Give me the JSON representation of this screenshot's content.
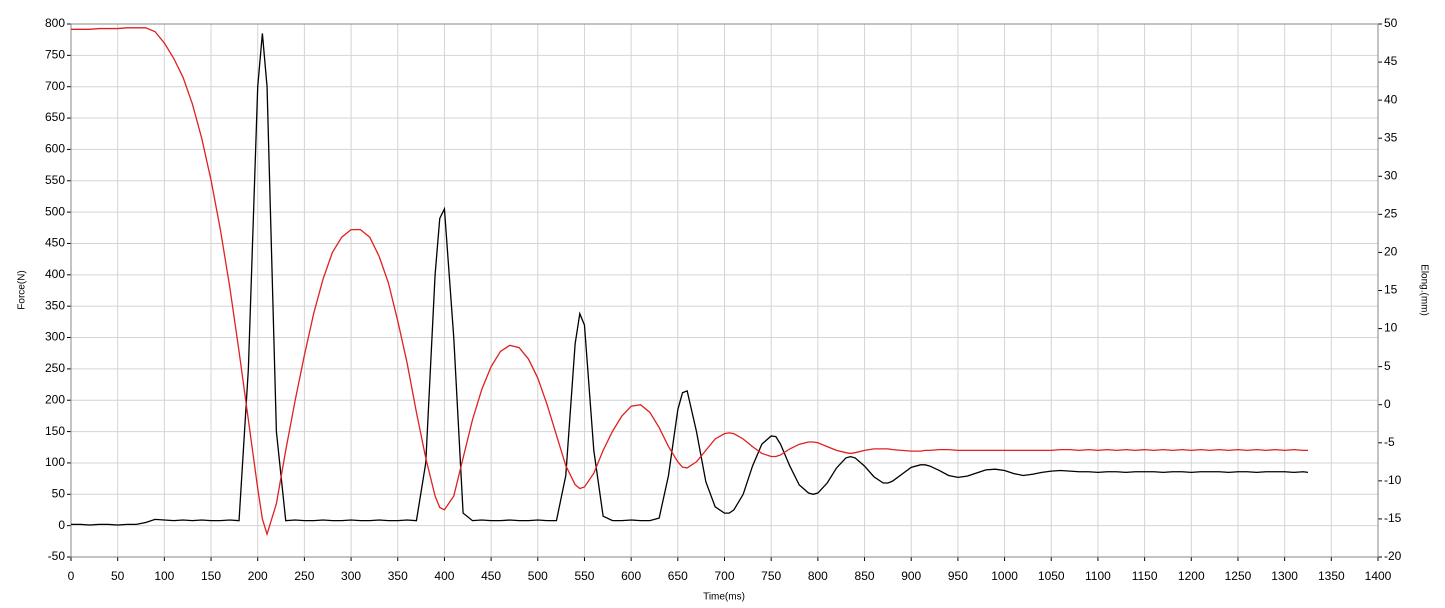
{
  "chart_data": {
    "type": "line",
    "x_label": "Time(ms)",
    "y_label": "Force(N)",
    "y2_label": "Elong.(mm)",
    "x": [
      0,
      10,
      20,
      30,
      40,
      50,
      60,
      70,
      80,
      90,
      100,
      110,
      120,
      130,
      140,
      150,
      160,
      170,
      180,
      190,
      200,
      205,
      210,
      220,
      230,
      240,
      250,
      260,
      270,
      280,
      290,
      300,
      310,
      320,
      330,
      340,
      350,
      360,
      370,
      380,
      390,
      395,
      400,
      410,
      420,
      430,
      440,
      450,
      460,
      470,
      480,
      490,
      500,
      510,
      520,
      530,
      540,
      545,
      550,
      560,
      570,
      580,
      590,
      600,
      610,
      620,
      630,
      640,
      650,
      655,
      660,
      670,
      680,
      690,
      700,
      705,
      710,
      720,
      730,
      740,
      750,
      755,
      760,
      770,
      780,
      790,
      795,
      800,
      810,
      820,
      830,
      835,
      840,
      850,
      860,
      870,
      875,
      880,
      890,
      900,
      910,
      915,
      920,
      930,
      940,
      950,
      960,
      970,
      980,
      990,
      1000,
      1010,
      1020,
      1030,
      1040,
      1050,
      1060,
      1070,
      1080,
      1090,
      1100,
      1110,
      1120,
      1130,
      1140,
      1150,
      1160,
      1170,
      1180,
      1190,
      1200,
      1210,
      1220,
      1230,
      1240,
      1250,
      1260,
      1270,
      1280,
      1290,
      1300,
      1310,
      1320,
      1325
    ],
    "series": [
      {
        "name": "Force",
        "color": "#000000",
        "values": [
          2,
          2,
          1,
          2,
          2,
          1,
          2,
          2,
          5,
          10,
          9,
          8,
          9,
          8,
          9,
          8,
          8,
          9,
          8,
          250,
          700,
          785,
          700,
          150,
          8,
          9,
          8,
          8,
          9,
          8,
          8,
          9,
          8,
          8,
          9,
          8,
          8,
          9,
          8,
          100,
          400,
          490,
          505,
          300,
          20,
          8,
          9,
          8,
          8,
          9,
          8,
          8,
          9,
          8,
          8,
          80,
          290,
          338,
          320,
          120,
          15,
          8,
          8,
          9,
          8,
          8,
          12,
          80,
          185,
          212,
          215,
          150,
          70,
          30,
          20,
          20,
          25,
          50,
          95,
          130,
          143,
          142,
          130,
          95,
          65,
          52,
          50,
          52,
          68,
          92,
          108,
          110,
          108,
          95,
          78,
          68,
          68,
          71,
          82,
          93,
          97,
          97,
          95,
          88,
          80,
          77,
          79,
          84,
          89,
          90,
          88,
          83,
          80,
          82,
          85,
          87,
          88,
          87,
          86,
          86,
          85,
          86,
          86,
          85,
          86,
          86,
          86,
          85,
          86,
          86,
          85,
          86,
          86,
          86,
          85,
          86,
          86,
          85,
          86,
          86,
          86,
          85,
          86,
          85
        ]
      },
      {
        "name": "Elong",
        "color": "#e02020",
        "axis": "y2",
        "values": [
          49.3,
          49.3,
          49.3,
          49.4,
          49.4,
          49.4,
          49.5,
          49.5,
          49.5,
          49,
          47.5,
          45.5,
          43,
          39.5,
          35,
          29.5,
          23,
          15.5,
          7,
          -2,
          -11,
          -15,
          -17,
          -13,
          -6,
          0.5,
          6.5,
          12,
          16.5,
          20,
          22,
          23,
          23,
          22,
          19.5,
          16,
          11,
          5.5,
          -1,
          -7,
          -12,
          -13.5,
          -13.8,
          -12,
          -7,
          -2,
          2,
          5,
          7,
          7.8,
          7.5,
          6,
          3.5,
          0,
          -4,
          -8,
          -10.5,
          -11,
          -10.8,
          -9,
          -6,
          -3.5,
          -1.5,
          -0.2,
          0,
          -1,
          -3,
          -5.5,
          -7.5,
          -8.2,
          -8.3,
          -7.5,
          -6,
          -4.5,
          -3.8,
          -3.7,
          -3.8,
          -4.5,
          -5.5,
          -6.4,
          -6.8,
          -6.8,
          -6.6,
          -5.8,
          -5.2,
          -4.9,
          -4.9,
          -5,
          -5.5,
          -6,
          -6.3,
          -6.4,
          -6.3,
          -6,
          -5.8,
          -5.8,
          -5.8,
          -5.9,
          -6,
          -6.1,
          -6.1,
          -6,
          -6,
          -5.9,
          -5.9,
          -6,
          -6,
          -6,
          -6,
          -6,
          -6,
          -6,
          -6,
          -6,
          -6,
          -6,
          -5.9,
          -5.9,
          -6,
          -5.9,
          -6,
          -5.9,
          -6,
          -5.9,
          -6,
          -5.9,
          -6,
          -5.9,
          -6,
          -5.9,
          -6,
          -5.9,
          -6,
          -5.9,
          -6,
          -5.9,
          -6,
          -5.9,
          -6,
          -5.9,
          -6,
          -5.9,
          -6,
          -6
        ]
      }
    ],
    "xlim": [
      0,
      1400
    ],
    "xticks": [
      0,
      50,
      100,
      150,
      200,
      250,
      300,
      350,
      400,
      450,
      500,
      550,
      600,
      650,
      700,
      750,
      800,
      850,
      900,
      950,
      1000,
      1050,
      1100,
      1150,
      1200,
      1250,
      1300,
      1350,
      1400
    ],
    "ylim": [
      -50,
      800
    ],
    "yticks": [
      -50,
      0,
      50,
      100,
      150,
      200,
      250,
      300,
      350,
      400,
      450,
      500,
      550,
      600,
      650,
      700,
      750,
      800
    ],
    "y2lim": [
      -20,
      50
    ],
    "y2ticks": [
      -20,
      -15,
      -10,
      -5,
      0,
      5,
      10,
      15,
      20,
      25,
      30,
      35,
      40,
      45,
      50
    ],
    "grid": true
  }
}
